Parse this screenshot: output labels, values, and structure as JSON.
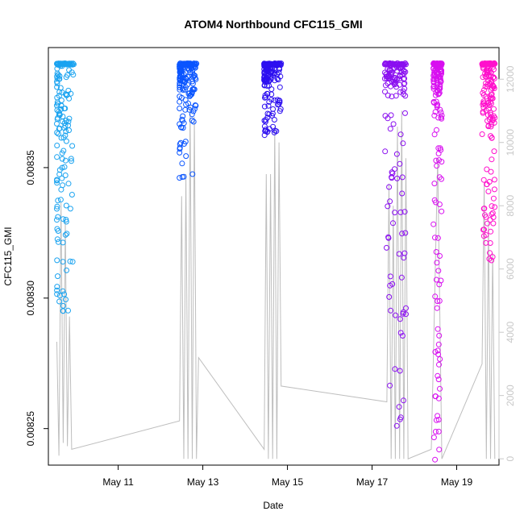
{
  "chart_data": {
    "type": "scatter",
    "title": "ATOM4 Northbound CFC115_GMI",
    "xlabel": "Date",
    "ylabel": "CFC115_GMI",
    "x_ticks": [
      {
        "label": "May 11",
        "day": 11
      },
      {
        "label": "May 13",
        "day": 13
      },
      {
        "label": "May 15",
        "day": 15
      },
      {
        "label": "May 17",
        "day": 17
      },
      {
        "label": "May 19",
        "day": 19
      }
    ],
    "xlim_day": [
      9.35,
      20.0
    ],
    "y_left_ticks": [
      0.00825,
      0.0083,
      0.00835
    ],
    "y_left_tick_labels": [
      "0.00825",
      "0.00830",
      "0.00835"
    ],
    "ylim_left": [
      0.008236,
      0.008396
    ],
    "y_right_ticks": [
      0,
      2000,
      4000,
      6000,
      8000,
      10000,
      12000
    ],
    "y_right_tick_labels": [
      "0",
      "2000",
      "4000",
      "6000",
      "8000",
      "10000",
      "12000"
    ],
    "ylim_right": [
      -200,
      13000
    ],
    "right_axis_color": "#c8c8c8",
    "altitude_color": "#bebebe",
    "series": [
      {
        "color": "#1aa3f0",
        "x_day": [
          9.55,
          9.95
        ],
        "y_min": 0.008294,
        "y_max": 0.00839,
        "dense_low": 0.00834,
        "left_bias": true
      },
      {
        "color": "#0a55ff",
        "x_day": [
          12.45,
          12.85
        ],
        "y_min": 0.008346,
        "y_max": 0.00839,
        "dense_low": 0.008376,
        "left_bias": true
      },
      {
        "color": "#2d0ff0",
        "x_day": [
          14.45,
          14.85
        ],
        "y_min": 0.008362,
        "y_max": 0.00839,
        "dense_low": 0.00838,
        "left_bias": true
      },
      {
        "color": "#8a0ff0",
        "x_day": [
          17.3,
          17.8
        ],
        "y_min": 0.008245,
        "y_max": 0.00839,
        "dense_low": 0.008375,
        "left_bias": false
      },
      {
        "color": "#d80ff0",
        "x_day": [
          18.45,
          18.65
        ],
        "y_min": 0.008238,
        "y_max": 0.00839,
        "dense_low": 0.00837,
        "left_bias": false
      },
      {
        "color": "#ff10cc",
        "x_day": [
          19.6,
          19.9
        ],
        "y_min": 0.008314,
        "y_max": 0.00839,
        "dense_low": 0.00836,
        "left_bias": false
      }
    ],
    "altitude_track": [
      {
        "d": 9.55,
        "a": 3700
      },
      {
        "d": 9.6,
        "a": 100
      },
      {
        "d": 9.65,
        "a": 8100
      },
      {
        "d": 9.7,
        "a": 500
      },
      {
        "d": 9.75,
        "a": 7500
      },
      {
        "d": 9.8,
        "a": 400
      },
      {
        "d": 9.85,
        "a": 4500
      },
      {
        "d": 9.9,
        "a": 300
      },
      {
        "d": 12.45,
        "a": 1200
      },
      {
        "d": 12.5,
        "a": 8300
      },
      {
        "d": 12.55,
        "a": 0
      },
      {
        "d": 12.6,
        "a": 9000
      },
      {
        "d": 12.65,
        "a": 0
      },
      {
        "d": 12.7,
        "a": 11200
      },
      {
        "d": 12.75,
        "a": 0
      },
      {
        "d": 12.8,
        "a": 10800
      },
      {
        "d": 12.85,
        "a": 0
      },
      {
        "d": 12.9,
        "a": 3200
      },
      {
        "d": 14.45,
        "a": 300
      },
      {
        "d": 14.5,
        "a": 9000
      },
      {
        "d": 14.55,
        "a": 0
      },
      {
        "d": 14.6,
        "a": 9000
      },
      {
        "d": 14.65,
        "a": 0
      },
      {
        "d": 14.7,
        "a": 10500
      },
      {
        "d": 14.75,
        "a": 0
      },
      {
        "d": 14.8,
        "a": 10000
      },
      {
        "d": 14.85,
        "a": 2300
      },
      {
        "d": 17.35,
        "a": 1800
      },
      {
        "d": 17.4,
        "a": 8700
      },
      {
        "d": 17.45,
        "a": 0
      },
      {
        "d": 17.5,
        "a": 8000
      },
      {
        "d": 17.55,
        "a": 0
      },
      {
        "d": 17.6,
        "a": 10500
      },
      {
        "d": 17.65,
        "a": 0
      },
      {
        "d": 17.7,
        "a": 11000
      },
      {
        "d": 17.75,
        "a": 0
      },
      {
        "d": 17.8,
        "a": 9500
      },
      {
        "d": 17.85,
        "a": 0
      },
      {
        "d": 18.4,
        "a": 300
      },
      {
        "d": 18.45,
        "a": 3200
      },
      {
        "d": 18.55,
        "a": 9500
      },
      {
        "d": 18.65,
        "a": 0
      },
      {
        "d": 19.6,
        "a": 3000
      },
      {
        "d": 19.65,
        "a": 8700
      },
      {
        "d": 19.7,
        "a": 0
      },
      {
        "d": 19.75,
        "a": 7500
      },
      {
        "d": 19.8,
        "a": 0
      },
      {
        "d": 19.85,
        "a": 6500
      },
      {
        "d": 19.9,
        "a": 0
      }
    ]
  }
}
